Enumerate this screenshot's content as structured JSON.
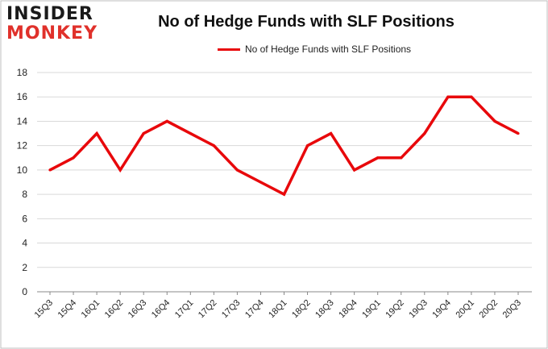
{
  "logo": {
    "line1": "INSIDER",
    "line2": "MONKEY"
  },
  "colors": {
    "series": "#e8080b",
    "grid": "#d9d9d9",
    "axis": "#888888",
    "plot_border": "#bfbfbf"
  },
  "chart_data": {
    "type": "line",
    "title": "No of Hedge Funds with SLF Positions",
    "xlabel": "",
    "ylabel": "",
    "ylim": [
      0,
      18
    ],
    "yticks": [
      0,
      2,
      4,
      6,
      8,
      10,
      12,
      14,
      16,
      18
    ],
    "grid": "horizontal",
    "legend_position": "top-center",
    "categories": [
      "15Q3",
      "15Q4",
      "16Q1",
      "16Q2",
      "16Q3",
      "16Q4",
      "17Q1",
      "17Q2",
      "17Q3",
      "17Q4",
      "18Q1",
      "18Q2",
      "18Q3",
      "18Q4",
      "19Q1",
      "19Q2",
      "19Q3",
      "19Q4",
      "20Q1",
      "20Q2",
      "20Q3"
    ],
    "series": [
      {
        "name": "No of Hedge Funds with SLF Positions",
        "values": [
          10,
          11,
          13,
          10,
          13,
          14,
          13,
          12,
          10,
          9,
          8,
          12,
          13,
          10,
          11,
          11,
          13,
          16,
          16,
          14,
          13
        ]
      }
    ]
  }
}
